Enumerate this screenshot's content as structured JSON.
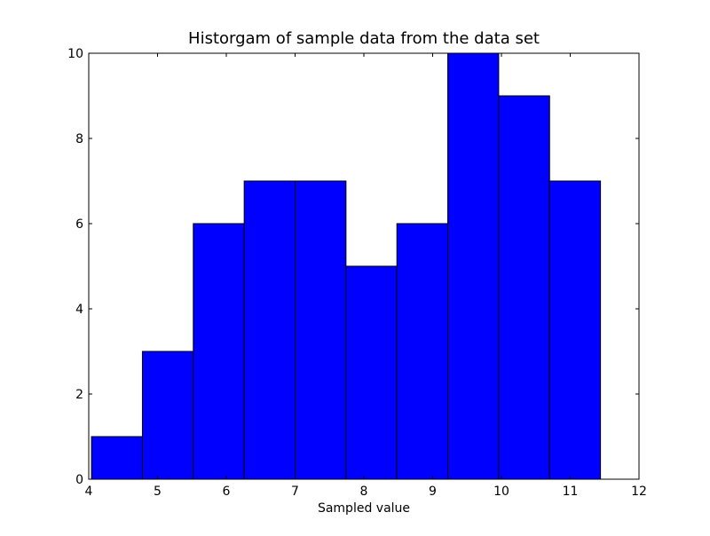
{
  "chart_data": {
    "type": "bar",
    "title": "Historgam of sample data from the data set",
    "xlabel": "Sampled value",
    "ylabel": "",
    "xlim": [
      4,
      12
    ],
    "ylim": [
      0,
      10
    ],
    "x_ticks": [
      "4",
      "5",
      "6",
      "7",
      "8",
      "9",
      "10",
      "11",
      "12"
    ],
    "y_ticks": [
      "0",
      "2",
      "4",
      "6",
      "8",
      "10"
    ],
    "bin_edges": [
      4.04,
      4.78,
      5.52,
      6.26,
      7.0,
      7.74,
      8.48,
      9.22,
      9.96,
      10.7,
      11.44
    ],
    "values": [
      1,
      3,
      6,
      7,
      7,
      5,
      6,
      10,
      9,
      7
    ],
    "grid": false,
    "bar_color": "#0000ff",
    "edge_color": "#000000"
  }
}
